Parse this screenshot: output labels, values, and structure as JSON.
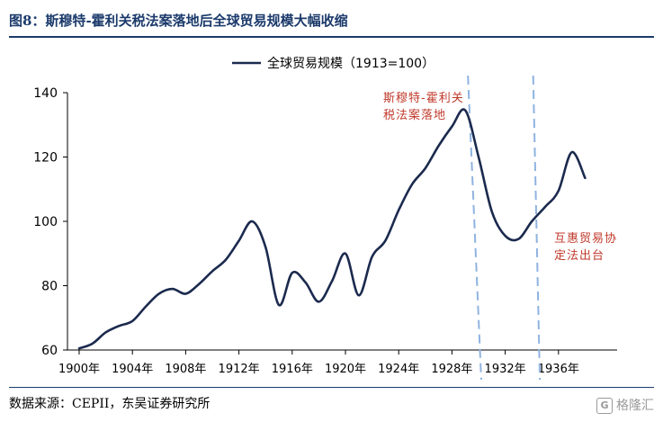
{
  "figure": {
    "title": "图8：斯穆特-霍利关税法案落地后全球贸易规模大幅收缩",
    "source": "数据来源：CEPII，东吴证券研究所",
    "watermark_text": "格隆汇",
    "watermark_logo": "G"
  },
  "annotations": {
    "smoot_hawley_line1": "斯穆特-霍利关",
    "smoot_hawley_line2": "税法案落地",
    "rta_line1": "互惠贸易协",
    "rta_line2": "定法出台"
  },
  "colors": {
    "title": "#1b3a6b",
    "line": "#1b2a4e",
    "dashed": "#8fb3e0",
    "annotation": "#c0392b"
  },
  "chart_data": {
    "type": "line",
    "title": "",
    "xlabel": "",
    "ylabel": "",
    "ylim": [
      60,
      140
    ],
    "yticks": [
      60,
      80,
      100,
      120,
      140
    ],
    "xlim": [
      1900,
      1940
    ],
    "xticks": [
      "1900年",
      "1904年",
      "1908年",
      "1912年",
      "1916年",
      "1920年",
      "1924年",
      "1928年",
      "1932年",
      "1936年"
    ],
    "grid": false,
    "legend": "top-center",
    "series": [
      {
        "name": "全球贸易规模（1913=100）",
        "x": [
          1900,
          1901,
          1902,
          1903,
          1904,
          1905,
          1906,
          1907,
          1908,
          1909,
          1910,
          1911,
          1912,
          1913,
          1914,
          1915,
          1916,
          1917,
          1918,
          1919,
          1920,
          1921,
          1922,
          1923,
          1924,
          1925,
          1926,
          1927,
          1928,
          1929,
          1930,
          1931,
          1932,
          1933,
          1934,
          1935,
          1936,
          1937,
          1938
        ],
        "y": [
          60.5,
          62,
          65.5,
          67.5,
          69,
          73.5,
          77.5,
          79,
          77.5,
          80.5,
          84.5,
          88,
          94,
          100,
          92,
          74,
          84,
          81,
          75,
          81.5,
          90,
          77,
          89,
          94,
          103.5,
          111.5,
          116.5,
          123.5,
          129.5,
          134.5,
          120,
          103,
          95.5,
          94.5,
          100,
          104.5,
          109.5,
          121.5,
          113.5
        ]
      }
    ],
    "vlines": [
      {
        "label": "斯穆特-霍利关税法案落地",
        "x_top": 1929.2,
        "x_bottom": 1930.2
      },
      {
        "label": "互惠贸易协定法出台",
        "x_top": 1934.1,
        "x_bottom": 1934.6
      }
    ]
  }
}
